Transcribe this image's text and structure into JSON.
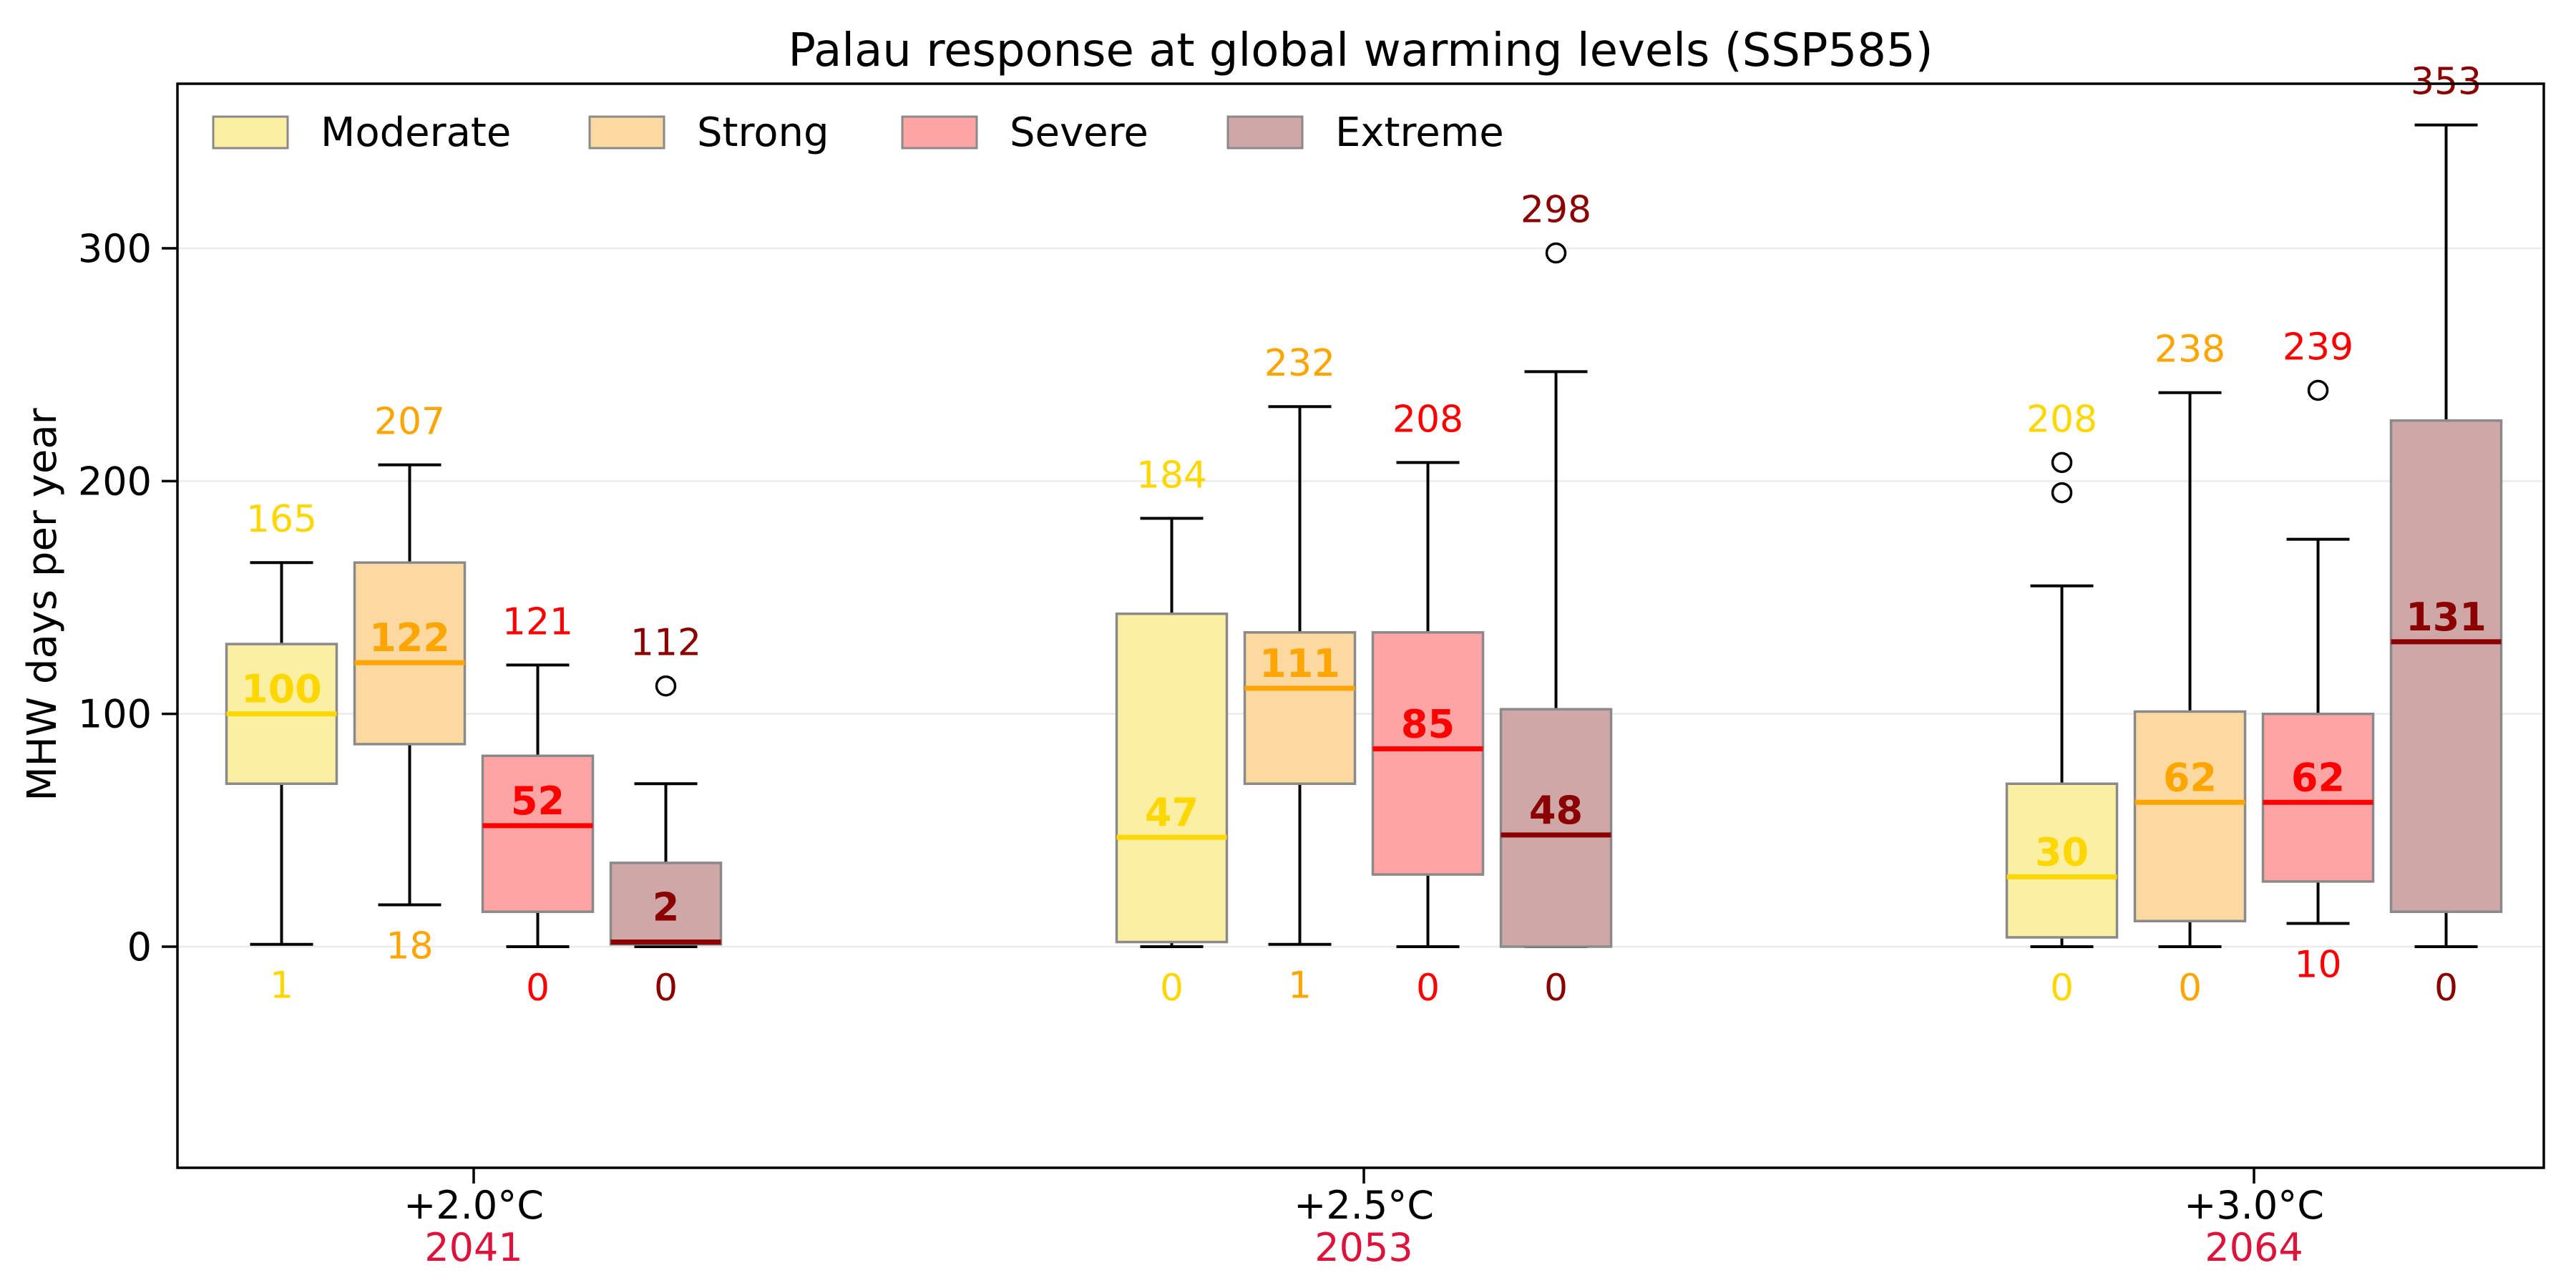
{
  "chart_data": {
    "type": "boxplot",
    "title": "Palau response at global warming levels (SSP585)",
    "ylabel": "MHW days per year",
    "yticks": [
      0,
      100,
      200,
      300
    ],
    "ylim": [
      -95,
      371
    ],
    "grid": "horizontal-light",
    "legend": {
      "position": "top-left-inside",
      "entries": [
        "Moderate",
        "Strong",
        "Severe",
        "Extreme"
      ]
    },
    "classes": [
      {
        "name": "Moderate",
        "fill": "#FBEFA3",
        "accent": "#FFD700"
      },
      {
        "name": "Strong",
        "fill": "#FBD9A0",
        "accent": "#FFA500"
      },
      {
        "name": "Severe",
        "fill": "#FFA4A4",
        "accent": "#FF0000"
      },
      {
        "name": "Extreme",
        "fill": "#CFA7A7",
        "accent": "#8B0000"
      }
    ],
    "colors": {
      "box_edge": "#8A8A8A",
      "whisker": "#000000",
      "outlier_edge": "#000000",
      "year_label": "#DC143C",
      "grid": "#EBEBEB",
      "text": "#000000",
      "background": "#FFFFFF"
    },
    "groups": [
      {
        "label": "+2.0°C",
        "year": "2041",
        "boxes": [
          {
            "class": "Moderate",
            "whislo": 1,
            "q1": 70,
            "med": 100,
            "q3": 130,
            "whishi": 165,
            "outliers": [],
            "min_label": "1",
            "med_label": "100",
            "max_label": "165"
          },
          {
            "class": "Strong",
            "whislo": 18,
            "q1": 87,
            "med": 122,
            "q3": 165,
            "whishi": 207,
            "outliers": [],
            "min_label": "18",
            "med_label": "122",
            "max_label": "207"
          },
          {
            "class": "Severe",
            "whislo": 0,
            "q1": 15,
            "med": 52,
            "q3": 82,
            "whishi": 121,
            "outliers": [],
            "min_label": "0",
            "med_label": "52",
            "max_label": "121"
          },
          {
            "class": "Extreme",
            "whislo": 0,
            "q1": 1,
            "med": 2,
            "q3": 36,
            "whishi": 70,
            "outliers": [
              112
            ],
            "min_label": "0",
            "med_label": "2",
            "max_label": "112"
          }
        ]
      },
      {
        "label": "+2.5°C",
        "year": "2053",
        "boxes": [
          {
            "class": "Moderate",
            "whislo": 0,
            "q1": 2,
            "med": 47,
            "q3": 143,
            "whishi": 184,
            "outliers": [],
            "min_label": "0",
            "med_label": "47",
            "max_label": "184"
          },
          {
            "class": "Strong",
            "whislo": 1,
            "q1": 70,
            "med": 111,
            "q3": 135,
            "whishi": 232,
            "outliers": [],
            "min_label": "1",
            "med_label": "111",
            "max_label": "232"
          },
          {
            "class": "Severe",
            "whislo": 0,
            "q1": 31,
            "med": 85,
            "q3": 135,
            "whishi": 208,
            "outliers": [],
            "min_label": "0",
            "med_label": "85",
            "max_label": "208"
          },
          {
            "class": "Extreme",
            "whislo": 0,
            "q1": 0,
            "med": 48,
            "q3": 102,
            "whishi": 247,
            "outliers": [
              298
            ],
            "min_label": "0",
            "med_label": "48",
            "max_label": "298"
          }
        ]
      },
      {
        "label": "+3.0°C",
        "year": "2064",
        "boxes": [
          {
            "class": "Moderate",
            "whislo": 0,
            "q1": 4,
            "med": 30,
            "q3": 70,
            "whishi": 155,
            "outliers": [
              195,
              208
            ],
            "min_label": "0",
            "med_label": "30",
            "max_label": "208"
          },
          {
            "class": "Strong",
            "whislo": 0,
            "q1": 11,
            "med": 62,
            "q3": 101,
            "whishi": 238,
            "outliers": [],
            "min_label": "0",
            "med_label": "62",
            "max_label": "238"
          },
          {
            "class": "Severe",
            "whislo": 10,
            "q1": 28,
            "med": 62,
            "q3": 100,
            "whishi": 175,
            "outliers": [
              239
            ],
            "min_label": "10",
            "med_label": "62",
            "max_label": "239"
          },
          {
            "class": "Extreme",
            "whislo": 0,
            "q1": 15,
            "med": 131,
            "q3": 226,
            "whishi": 353,
            "outliers": [],
            "min_label": "0",
            "med_label": "131",
            "max_label": "353"
          }
        ]
      }
    ]
  }
}
